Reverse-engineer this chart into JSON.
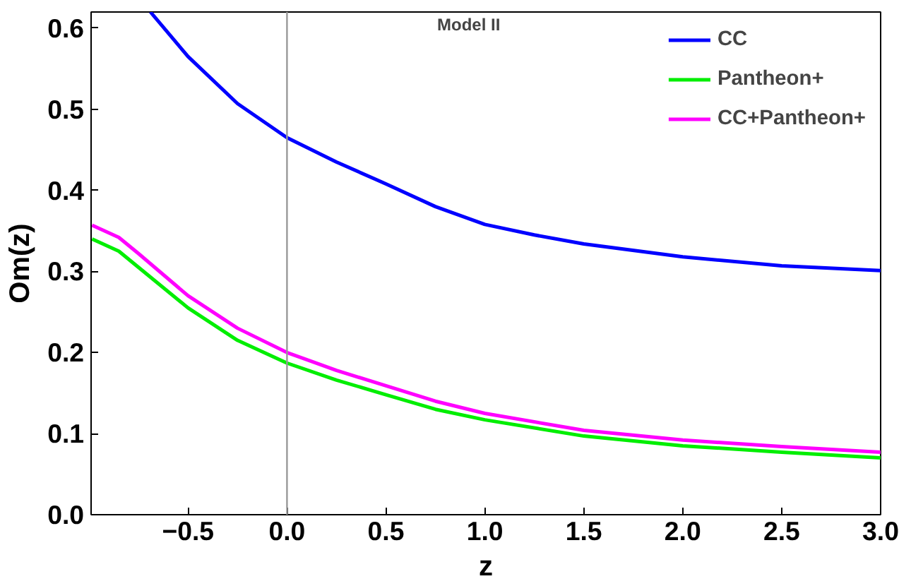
{
  "chart_data": {
    "type": "line",
    "xlabel": "z",
    "ylabel": "Om(z)",
    "annotations": [
      "Model II"
    ],
    "xlim": [
      -0.99,
      3.0
    ],
    "ylim": [
      0.0,
      0.62
    ],
    "xticks": [
      {
        "value": -0.5,
        "label": "−0.5"
      },
      {
        "value": 0.0,
        "label": "0.0"
      },
      {
        "value": 0.5,
        "label": "0.5"
      },
      {
        "value": 1.0,
        "label": "1.0"
      },
      {
        "value": 1.5,
        "label": "1.5"
      },
      {
        "value": 2.0,
        "label": "2.0"
      },
      {
        "value": 2.5,
        "label": "2.5"
      },
      {
        "value": 3.0,
        "label": "3.0"
      }
    ],
    "yticks": [
      {
        "value": 0.0,
        "label": "0.0"
      },
      {
        "value": 0.1,
        "label": "0.1"
      },
      {
        "value": 0.2,
        "label": "0.2"
      },
      {
        "value": 0.3,
        "label": "0.3"
      },
      {
        "value": 0.4,
        "label": "0.4"
      },
      {
        "value": 0.5,
        "label": "0.5"
      },
      {
        "value": 0.6,
        "label": "0.6"
      }
    ],
    "grid": false,
    "legend": "top right",
    "ref_lines": [
      {
        "axis": "x",
        "value": 0,
        "color": "#999999"
      }
    ],
    "series": [
      {
        "name": "CC",
        "color": "#0000ff",
        "x": [
          -0.69,
          -0.5,
          -0.25,
          0.0,
          0.25,
          0.5,
          0.75,
          1.0,
          1.25,
          1.5,
          2.0,
          2.5,
          3.0
        ],
        "values": [
          0.62,
          0.565,
          0.507,
          0.465,
          0.435,
          0.408,
          0.38,
          0.358,
          0.345,
          0.334,
          0.318,
          0.307,
          0.301
        ]
      },
      {
        "name": "Pantheon+",
        "color": "#00ee00",
        "x": [
          -0.985,
          -0.85,
          -0.75,
          -0.5,
          -0.25,
          0.0,
          0.25,
          0.5,
          0.75,
          1.0,
          1.5,
          2.0,
          2.5,
          3.0
        ],
        "values": [
          0.34,
          0.325,
          0.305,
          0.255,
          0.215,
          0.187,
          0.166,
          0.148,
          0.13,
          0.117,
          0.097,
          0.085,
          0.077,
          0.07
        ]
      },
      {
        "name": "CC+Pantheon+",
        "color": "#ff00ff",
        "x": [
          -0.985,
          -0.85,
          -0.75,
          -0.5,
          -0.25,
          0.0,
          0.25,
          0.5,
          0.75,
          1.0,
          1.5,
          2.0,
          2.5,
          3.0
        ],
        "values": [
          0.357,
          0.342,
          0.322,
          0.27,
          0.23,
          0.2,
          0.178,
          0.159,
          0.14,
          0.125,
          0.104,
          0.092,
          0.084,
          0.077
        ]
      }
    ]
  }
}
